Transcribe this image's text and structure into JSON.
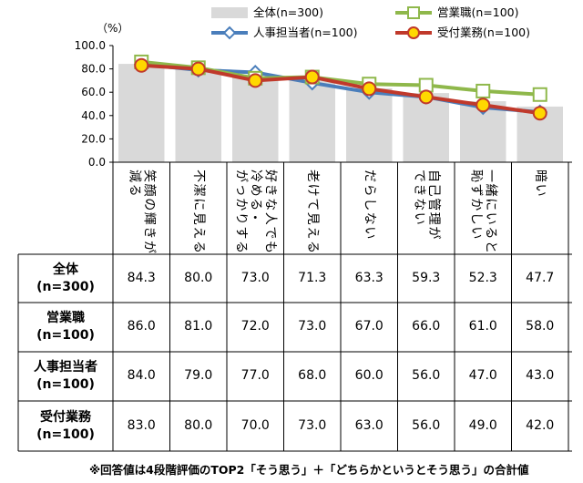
{
  "chart_data": {
    "type": "bar+line",
    "unit_label": "（%）",
    "ylim": [
      0,
      100
    ],
    "yticks": [
      "100.0",
      "80.0",
      "60.0",
      "40.0",
      "20.0",
      "0.0"
    ],
    "categories": [
      "笑顔の輝きが減る",
      "不潔に見える",
      "好きな人でも冷める・がっかりする",
      "老けて見える",
      "だらしない",
      "自己管理ができない",
      "一緒にいると恥ずかしい",
      "暗い"
    ],
    "category_lines": [
      [
        "笑顔の輝きが",
        "減る"
      ],
      [
        "不潔に見える"
      ],
      [
        "好きな人でも",
        "冷める・",
        "がっかりする"
      ],
      [
        "老けて見える"
      ],
      [
        "だらしない"
      ],
      [
        "自己管理が",
        "できない"
      ],
      [
        "一緒にいると",
        "恥ずかしい"
      ],
      [
        "暗い"
      ]
    ],
    "series": [
      {
        "name": "全体(n=300)",
        "kind": "bar",
        "color": "#d9d9d9",
        "values": [
          84.3,
          80.0,
          73.0,
          71.3,
          63.3,
          59.3,
          52.3,
          47.7
        ]
      },
      {
        "name": "営業職(n=100)",
        "kind": "line",
        "color": "#8fb84b",
        "marker": "square",
        "values": [
          86.0,
          81.0,
          72.0,
          73.0,
          67.0,
          66.0,
          61.0,
          58.0
        ]
      },
      {
        "name": "人事担当者(n=100)",
        "kind": "line",
        "color": "#4a7ebb",
        "marker": "diamond",
        "values": [
          84.0,
          79.0,
          77.0,
          68.0,
          60.0,
          56.0,
          47.0,
          43.0
        ]
      },
      {
        "name": "受付業務(n=100)",
        "kind": "line",
        "color": "#c0392b",
        "marker": "circle",
        "values": [
          83.0,
          80.0,
          70.0,
          73.0,
          63.0,
          56.0,
          49.0,
          42.0
        ]
      }
    ],
    "legend_position": "top",
    "grid": false
  },
  "table": {
    "rows": [
      {
        "label_lines": [
          "全体",
          "(n=300)"
        ],
        "values": [
          "84.3",
          "80.0",
          "73.0",
          "71.3",
          "63.3",
          "59.3",
          "52.3",
          "47.7"
        ]
      },
      {
        "label_lines": [
          "営業職",
          "(n=100)"
        ],
        "values": [
          "86.0",
          "81.0",
          "72.0",
          "73.0",
          "67.0",
          "66.0",
          "61.0",
          "58.0"
        ]
      },
      {
        "label_lines": [
          "人事担当者",
          "(n=100)"
        ],
        "values": [
          "84.0",
          "79.0",
          "77.0",
          "68.0",
          "60.0",
          "56.0",
          "47.0",
          "43.0"
        ]
      },
      {
        "label_lines": [
          "受付業務",
          "(n=100)"
        ],
        "values": [
          "83.0",
          "80.0",
          "70.0",
          "73.0",
          "63.0",
          "56.0",
          "49.0",
          "42.0"
        ]
      }
    ]
  },
  "footnote": "※回答値は4段階評価のTOP2「そう思う」＋「どちらかというとそう思う」の合計値"
}
